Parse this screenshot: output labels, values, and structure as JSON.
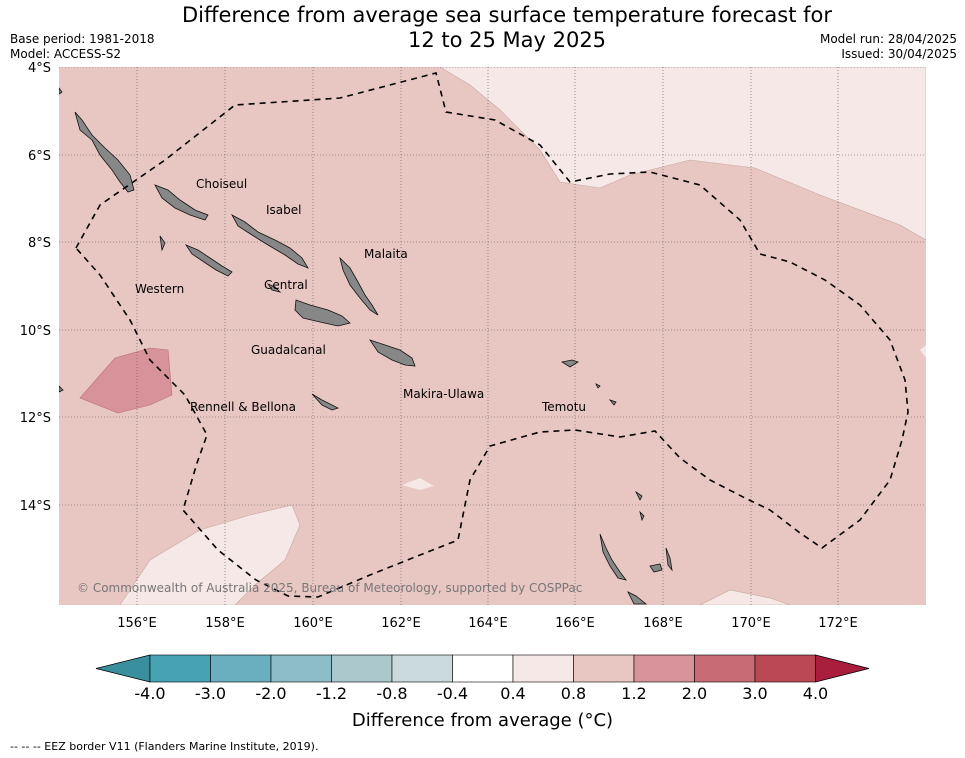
{
  "title": {
    "line1": "Difference from average sea surface temperature forecast for",
    "line2": "12 to 25 May 2025"
  },
  "meta": {
    "base_period": "Base period: 1981-2018",
    "model": "Model: ACCESS-S2",
    "model_run": "Model run: 28/04/2025",
    "issued": "Issued: 30/04/2025"
  },
  "map": {
    "lon_labels": [
      "156°E",
      "158°E",
      "160°E",
      "162°E",
      "164°E",
      "166°E",
      "168°E",
      "170°E",
      "172°E"
    ],
    "lat_labels": [
      "4°S",
      "6°S",
      "8°S",
      "10°S",
      "12°S",
      "14°S"
    ],
    "regions": [
      "Choiseul",
      "Isabel",
      "Malaita",
      "Western",
      "Central",
      "Guadalcanal",
      "Rennell & Bellona",
      "Makira-Ulawa",
      "Temotu"
    ],
    "copyright": "© Commonwealth of Australia 2025, Bureau of Meteorology, supported by COSPPac",
    "colors": {
      "anomaly_0_4_to_0_8": "#f5e8e6",
      "anomaly_0_8_to_1_2": "#e8c7c2",
      "anomaly_1_2_to_2_0": "#d8929a",
      "land": "#878787"
    }
  },
  "colorbar": {
    "tick_labels": [
      "-4.0",
      "-3.0",
      "-2.0",
      "-1.2",
      "-0.8",
      "-0.4",
      "0.4",
      "0.8",
      "1.2",
      "2.0",
      "3.0",
      "4.0"
    ],
    "colors": [
      "#3a8f9e",
      "#47a2b4",
      "#6aafbf",
      "#8dbdc6",
      "#abc9cc",
      "#c9d9dc",
      "#ffffff",
      "#f5e8e6",
      "#e8c7c2",
      "#d8929a",
      "#c96b75",
      "#bb4855",
      "#a81e3c"
    ],
    "label": "Difference from average (°C)"
  },
  "footnote": "--  --  -- EEZ border V11 (Flanders Marine Institute, 2019)."
}
